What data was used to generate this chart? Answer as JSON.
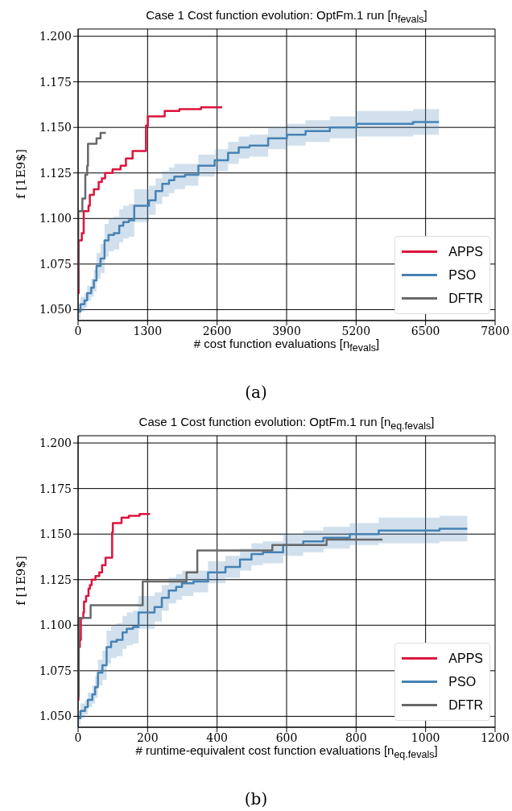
{
  "chart_data": [
    {
      "type": "step",
      "title": "Case 1 Cost function evolution: OptFm.1 run [n$_{fevals}$]",
      "xlabel": "# cost function evaluations [n$_{fevals}$]",
      "ylabel": "f [1E9$]",
      "annotations": [
        "(a)"
      ],
      "xlim": [
        0,
        7800
      ],
      "xticks": [
        0,
        1300,
        2600,
        3900,
        5200,
        6500,
        7800
      ],
      "ylim": [
        1.044,
        1.204
      ],
      "yticks": [
        {
          "value": 1.05,
          "label": "1.050"
        },
        {
          "value": 1.075,
          "label": "1.075"
        },
        {
          "value": 1.1,
          "label": "1.100"
        },
        {
          "value": 1.125,
          "label": "1.125"
        },
        {
          "value": 1.15,
          "label": "1.150"
        },
        {
          "value": 1.175,
          "label": "1.175"
        },
        {
          "value": 1.2,
          "label": "1.200"
        }
      ],
      "grid": true,
      "legend": "bottom right",
      "series": [
        {
          "name": "APPS",
          "color": "#dc143c",
          "x": [
            0,
            10,
            70,
            105,
            195,
            220,
            295,
            385,
            445,
            505,
            645,
            795,
            895,
            1020,
            1270,
            1305,
            1620,
            1895,
            2300,
            2695
          ],
          "values": [
            1.059,
            1.088,
            1.092,
            1.104,
            1.107,
            1.113,
            1.116,
            1.12,
            1.122,
            1.125,
            1.127,
            1.129,
            1.133,
            1.137,
            1.151,
            1.156,
            1.159,
            1.16,
            1.161,
            1.161
          ]
        },
        {
          "name": "PSO",
          "color": "#4682b4",
          "x": [
            0,
            45,
            120,
            170,
            245,
            295,
            345,
            420,
            495,
            570,
            670,
            770,
            845,
            950,
            1050,
            1150,
            1325,
            1450,
            1575,
            1700,
            1800,
            2000,
            2250,
            2555,
            2805,
            3005,
            3205,
            3555,
            3905,
            4255,
            4710,
            5210,
            5715,
            6265,
            6750
          ],
          "values": [
            1.049,
            1.053,
            1.055,
            1.059,
            1.062,
            1.066,
            1.074,
            1.078,
            1.088,
            1.091,
            1.092,
            1.096,
            1.098,
            1.099,
            1.107,
            1.107,
            1.11,
            1.115,
            1.119,
            1.121,
            1.123,
            1.124,
            1.129,
            1.132,
            1.136,
            1.139,
            1.14,
            1.144,
            1.146,
            1.148,
            1.15,
            1.152,
            1.152,
            1.153,
            1.153
          ],
          "lower": [
            1.045,
            1.049,
            1.051,
            1.055,
            1.057,
            1.06,
            1.067,
            1.07,
            1.079,
            1.082,
            1.083,
            1.087,
            1.089,
            1.09,
            1.098,
            1.098,
            1.102,
            1.108,
            1.112,
            1.114,
            1.116,
            1.118,
            1.123,
            1.126,
            1.13,
            1.133,
            1.134,
            1.138,
            1.14,
            1.142,
            1.144,
            1.145,
            1.145,
            1.146,
            1.146
          ],
          "upper": [
            1.053,
            1.057,
            1.059,
            1.063,
            1.067,
            1.072,
            1.081,
            1.086,
            1.097,
            1.1,
            1.101,
            1.105,
            1.107,
            1.108,
            1.116,
            1.116,
            1.118,
            1.122,
            1.126,
            1.128,
            1.13,
            1.13,
            1.135,
            1.138,
            1.142,
            1.145,
            1.146,
            1.15,
            1.152,
            1.154,
            1.156,
            1.159,
            1.159,
            1.16,
            1.16
          ]
        },
        {
          "name": "DFTR",
          "color": "#696969",
          "x": [
            0,
            3,
            80,
            135,
            170,
            185,
            345,
            420,
            520
          ],
          "values": [
            1.061,
            1.104,
            1.111,
            1.124,
            1.129,
            1.141,
            1.144,
            1.147,
            1.147
          ]
        }
      ]
    },
    {
      "type": "step",
      "title": "Case 1 Cost function evolution: OptFm.1 run [n$_{eq.fevals}$]",
      "xlabel": "# runtime-equivalent cost function evaluations [n$_{eq.fevals}$]",
      "ylabel": "f [1E9$]",
      "annotations": [
        "(b)"
      ],
      "xlim": [
        0,
        1200
      ],
      "xticks": [
        0,
        200,
        400,
        600,
        800,
        1000,
        1200
      ],
      "ylim": [
        1.044,
        1.204
      ],
      "yticks": [
        {
          "value": 1.05,
          "label": "1.050"
        },
        {
          "value": 1.075,
          "label": "1.075"
        },
        {
          "value": 1.1,
          "label": "1.100"
        },
        {
          "value": 1.125,
          "label": "1.125"
        },
        {
          "value": 1.15,
          "label": "1.150"
        },
        {
          "value": 1.175,
          "label": "1.175"
        },
        {
          "value": 1.2,
          "label": "1.200"
        }
      ],
      "grid": true,
      "legend": "bottom right",
      "series": [
        {
          "name": "APPS",
          "color": "#dc143c",
          "x": [
            0,
            1,
            5,
            8,
            15,
            17,
            23,
            30,
            34,
            39,
            50,
            61,
            69,
            79,
            98,
            100,
            125,
            146,
            177,
            207
          ],
          "values": [
            1.059,
            1.088,
            1.092,
            1.104,
            1.107,
            1.113,
            1.116,
            1.12,
            1.122,
            1.125,
            1.127,
            1.129,
            1.133,
            1.137,
            1.151,
            1.156,
            1.159,
            1.16,
            1.161,
            1.161
          ]
        },
        {
          "name": "PSO",
          "color": "#4682b4",
          "x": [
            0,
            7,
            20,
            28,
            41,
            49,
            57,
            70,
            82,
            95,
            111,
            128,
            140,
            158,
            174,
            191,
            220,
            241,
            261,
            282,
            299,
            332,
            374,
            424,
            466,
            499,
            532,
            590,
            648,
            706,
            782,
            865,
            949,
            1040,
            1120
          ],
          "values": [
            1.049,
            1.053,
            1.055,
            1.059,
            1.062,
            1.066,
            1.074,
            1.078,
            1.088,
            1.091,
            1.092,
            1.096,
            1.098,
            1.099,
            1.107,
            1.107,
            1.11,
            1.115,
            1.119,
            1.121,
            1.123,
            1.124,
            1.129,
            1.132,
            1.136,
            1.139,
            1.14,
            1.144,
            1.146,
            1.148,
            1.15,
            1.152,
            1.152,
            1.153,
            1.153
          ],
          "lower": [
            1.045,
            1.049,
            1.051,
            1.055,
            1.057,
            1.06,
            1.067,
            1.07,
            1.079,
            1.082,
            1.083,
            1.087,
            1.089,
            1.09,
            1.098,
            1.098,
            1.102,
            1.108,
            1.112,
            1.114,
            1.116,
            1.118,
            1.123,
            1.126,
            1.13,
            1.133,
            1.134,
            1.138,
            1.14,
            1.142,
            1.144,
            1.145,
            1.145,
            1.146,
            1.146
          ],
          "upper": [
            1.053,
            1.057,
            1.059,
            1.063,
            1.067,
            1.072,
            1.081,
            1.086,
            1.097,
            1.1,
            1.101,
            1.105,
            1.107,
            1.108,
            1.116,
            1.116,
            1.118,
            1.122,
            1.126,
            1.128,
            1.13,
            1.13,
            1.135,
            1.138,
            1.142,
            1.145,
            1.146,
            1.15,
            1.152,
            1.154,
            1.156,
            1.159,
            1.159,
            1.16,
            1.16
          ]
        },
        {
          "name": "DFTR",
          "color": "#696969",
          "x": [
            0,
            2,
            30,
            36,
            186,
            312,
            343,
            559,
            715,
            876
          ],
          "values": [
            1.061,
            1.104,
            1.104,
            1.111,
            1.124,
            1.129,
            1.141,
            1.144,
            1.147,
            1.147
          ]
        }
      ]
    }
  ]
}
